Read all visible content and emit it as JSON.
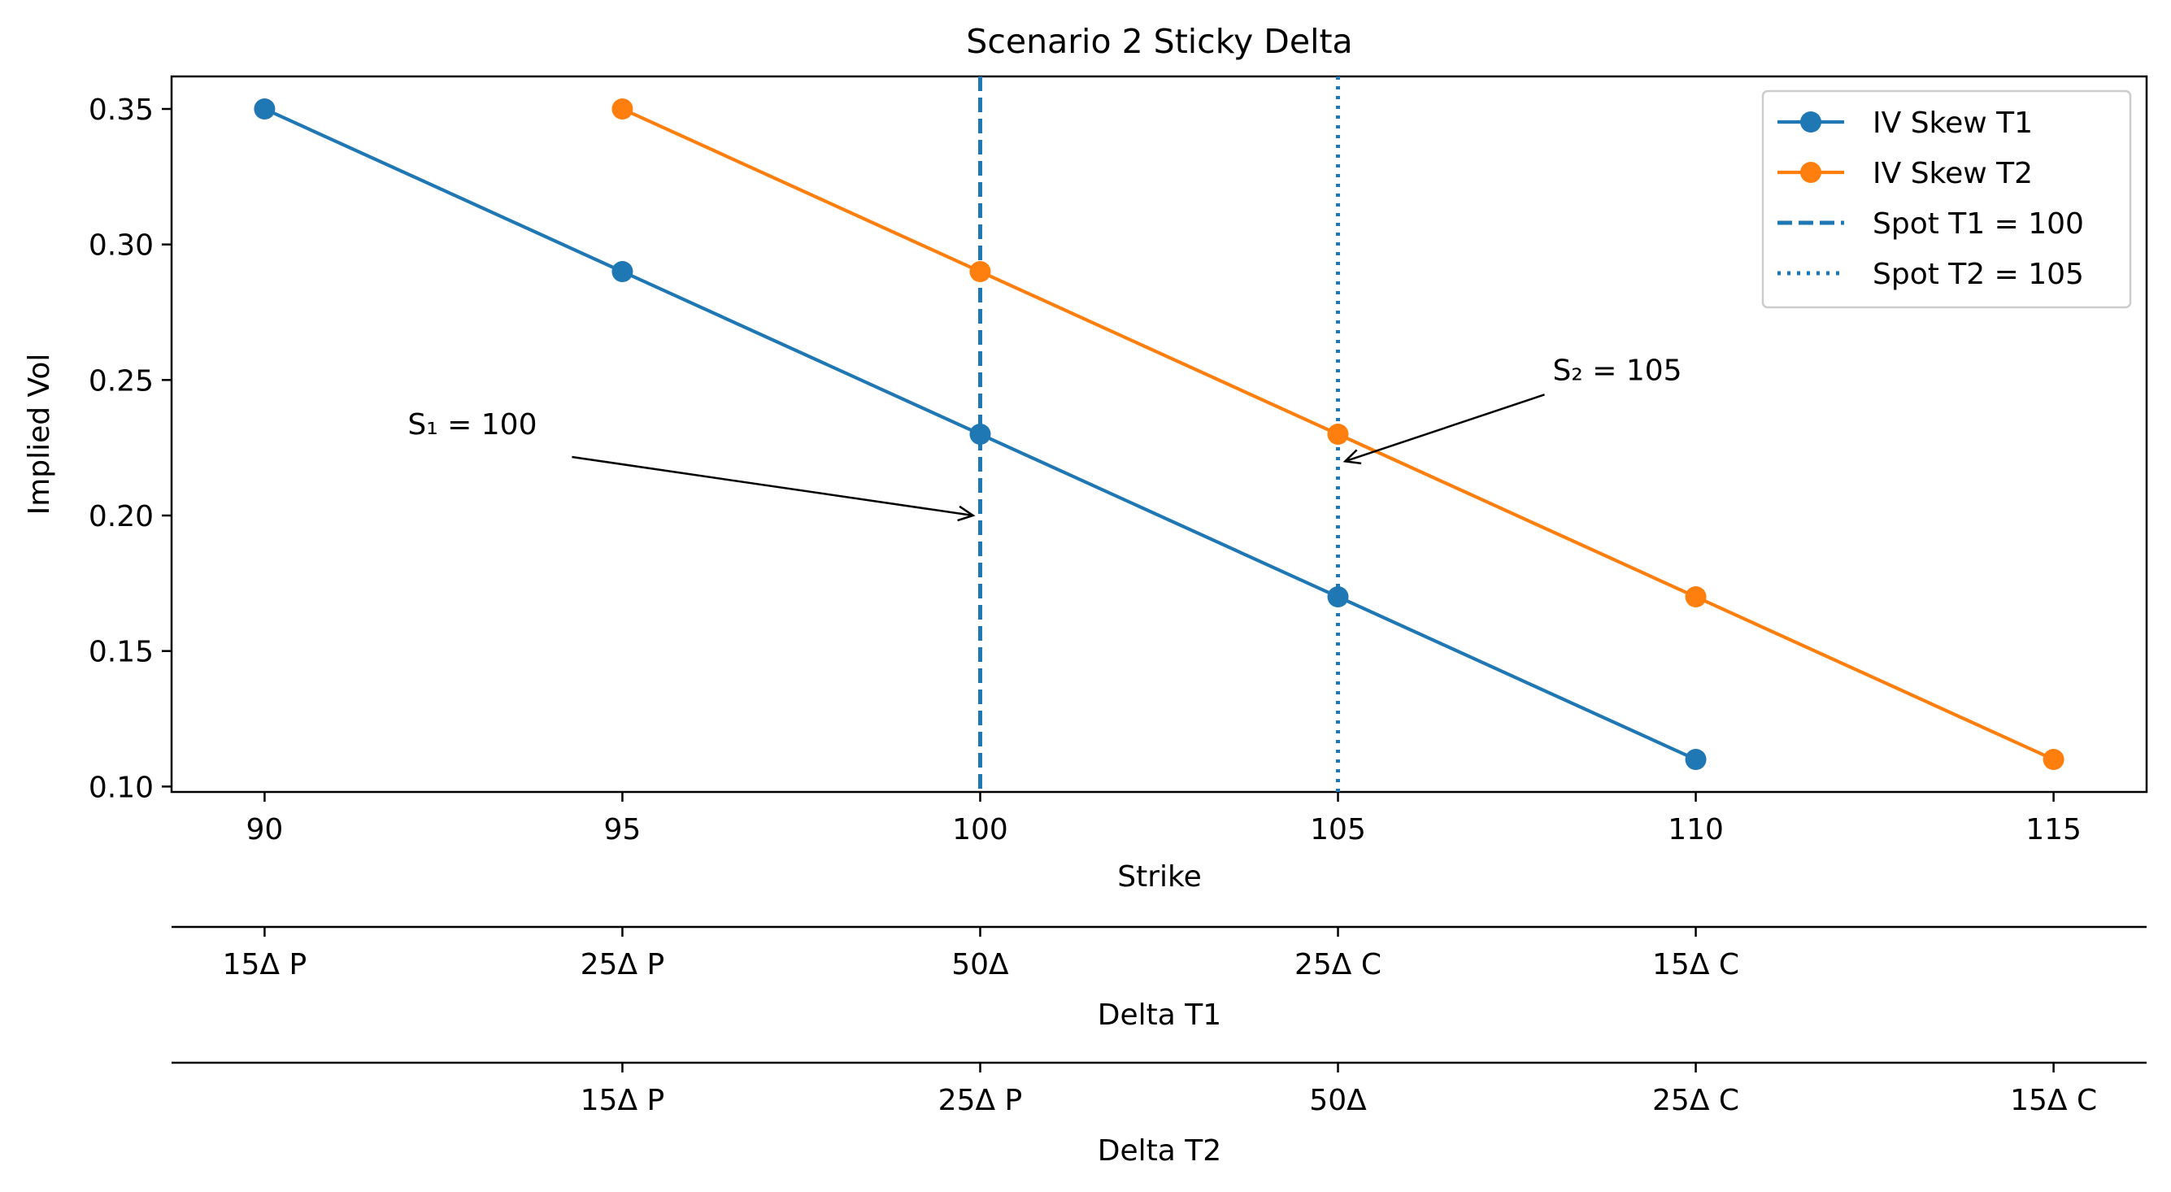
{
  "chart_data": {
    "type": "line",
    "title": "Scenario 2 Sticky Delta",
    "xlabel": "Strike",
    "ylabel": "Implied Vol",
    "xlim": [
      88.7,
      116.3
    ],
    "ylim": [
      0.098,
      0.362
    ],
    "x_ticks": [
      90,
      95,
      100,
      105,
      110,
      115
    ],
    "y_ticks": [
      0.1,
      0.15,
      0.2,
      0.25,
      0.3,
      0.35
    ],
    "x_tick_labels": [
      "90",
      "95",
      "100",
      "105",
      "110",
      "115"
    ],
    "y_tick_labels": [
      "0.10",
      "0.15",
      "0.20",
      "0.25",
      "0.30",
      "0.35"
    ],
    "grid": false,
    "legend": "top-right",
    "series": [
      {
        "name": "IV Skew T1",
        "color": "#1f77b4",
        "x": [
          90,
          95,
          100,
          105,
          110
        ],
        "y": [
          0.35,
          0.29,
          0.23,
          0.17,
          0.11
        ]
      },
      {
        "name": "IV Skew T2",
        "color": "#ff7f0e",
        "x": [
          95,
          100,
          105,
          110,
          115
        ],
        "y": [
          0.35,
          0.29,
          0.23,
          0.17,
          0.11
        ]
      }
    ],
    "vlines": [
      {
        "name": "Spot T1 = 100",
        "x": 100,
        "style": "dashed",
        "color": "#1f77b4"
      },
      {
        "name": "Spot T2 = 105",
        "x": 105,
        "style": "dotted",
        "color": "#1f77b4"
      }
    ],
    "annotations": [
      {
        "text": "S₁ = 100",
        "text_x": 92,
        "text_y": 0.23,
        "point_x": 99.9,
        "point_y": 0.2
      },
      {
        "text": "S₂ = 105",
        "text_x": 108,
        "text_y": 0.25,
        "point_x": 105.1,
        "point_y": 0.22
      }
    ],
    "secondary_axes": [
      {
        "label": "Delta T1",
        "ticks": [
          90,
          95,
          100,
          105,
          110
        ],
        "tick_labels": [
          "15Δ P",
          "25Δ P",
          "50Δ",
          "25Δ C",
          "15Δ C"
        ]
      },
      {
        "label": "Delta T2",
        "ticks": [
          95,
          100,
          105,
          110,
          115
        ],
        "tick_labels": [
          "15Δ P",
          "25Δ P",
          "50Δ",
          "25Δ C",
          "15Δ C"
        ]
      }
    ]
  }
}
